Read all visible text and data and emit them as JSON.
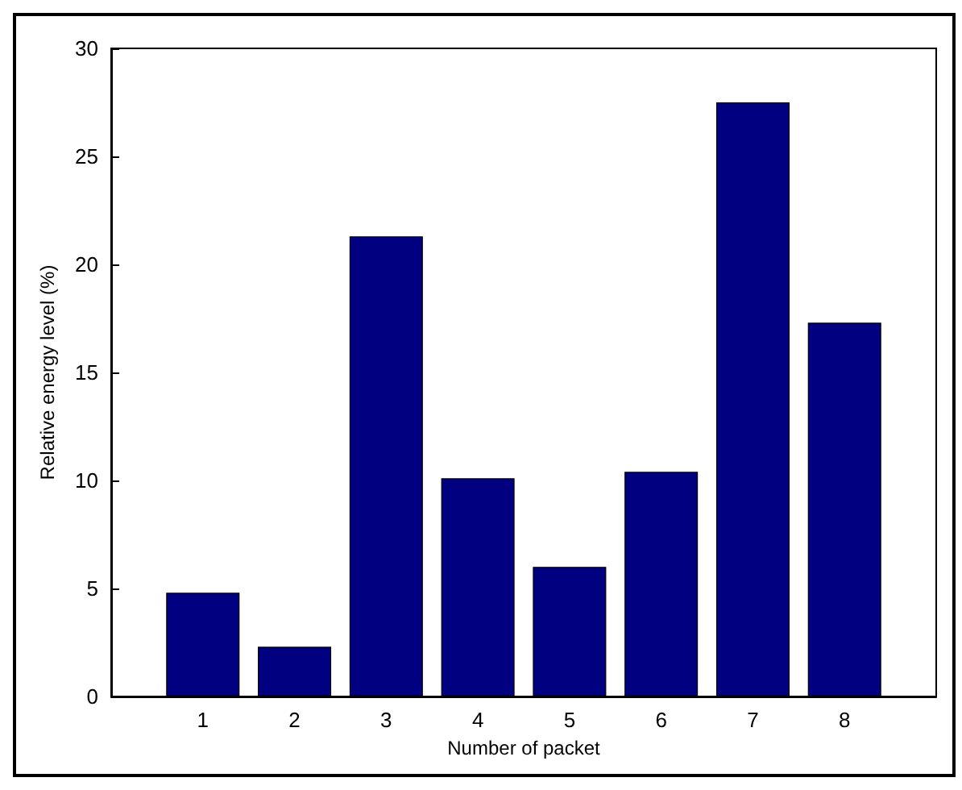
{
  "chart_data": {
    "type": "bar",
    "xlabel": "Number of packet",
    "ylabel": "Relative energy level (%)",
    "x": [
      1,
      2,
      3,
      4,
      5,
      6,
      7,
      8
    ],
    "values": [
      4.8,
      2.3,
      21.3,
      10.1,
      6.0,
      10.4,
      27.5,
      17.3
    ],
    "color": "#000080",
    "xlim": [
      0,
      9
    ],
    "xticks": [
      1,
      2,
      3,
      4,
      5,
      6,
      7,
      8
    ],
    "ylim": [
      0,
      30
    ],
    "yticks": [
      0,
      5,
      10,
      15,
      20,
      25,
      30
    ],
    "grid": false
  }
}
